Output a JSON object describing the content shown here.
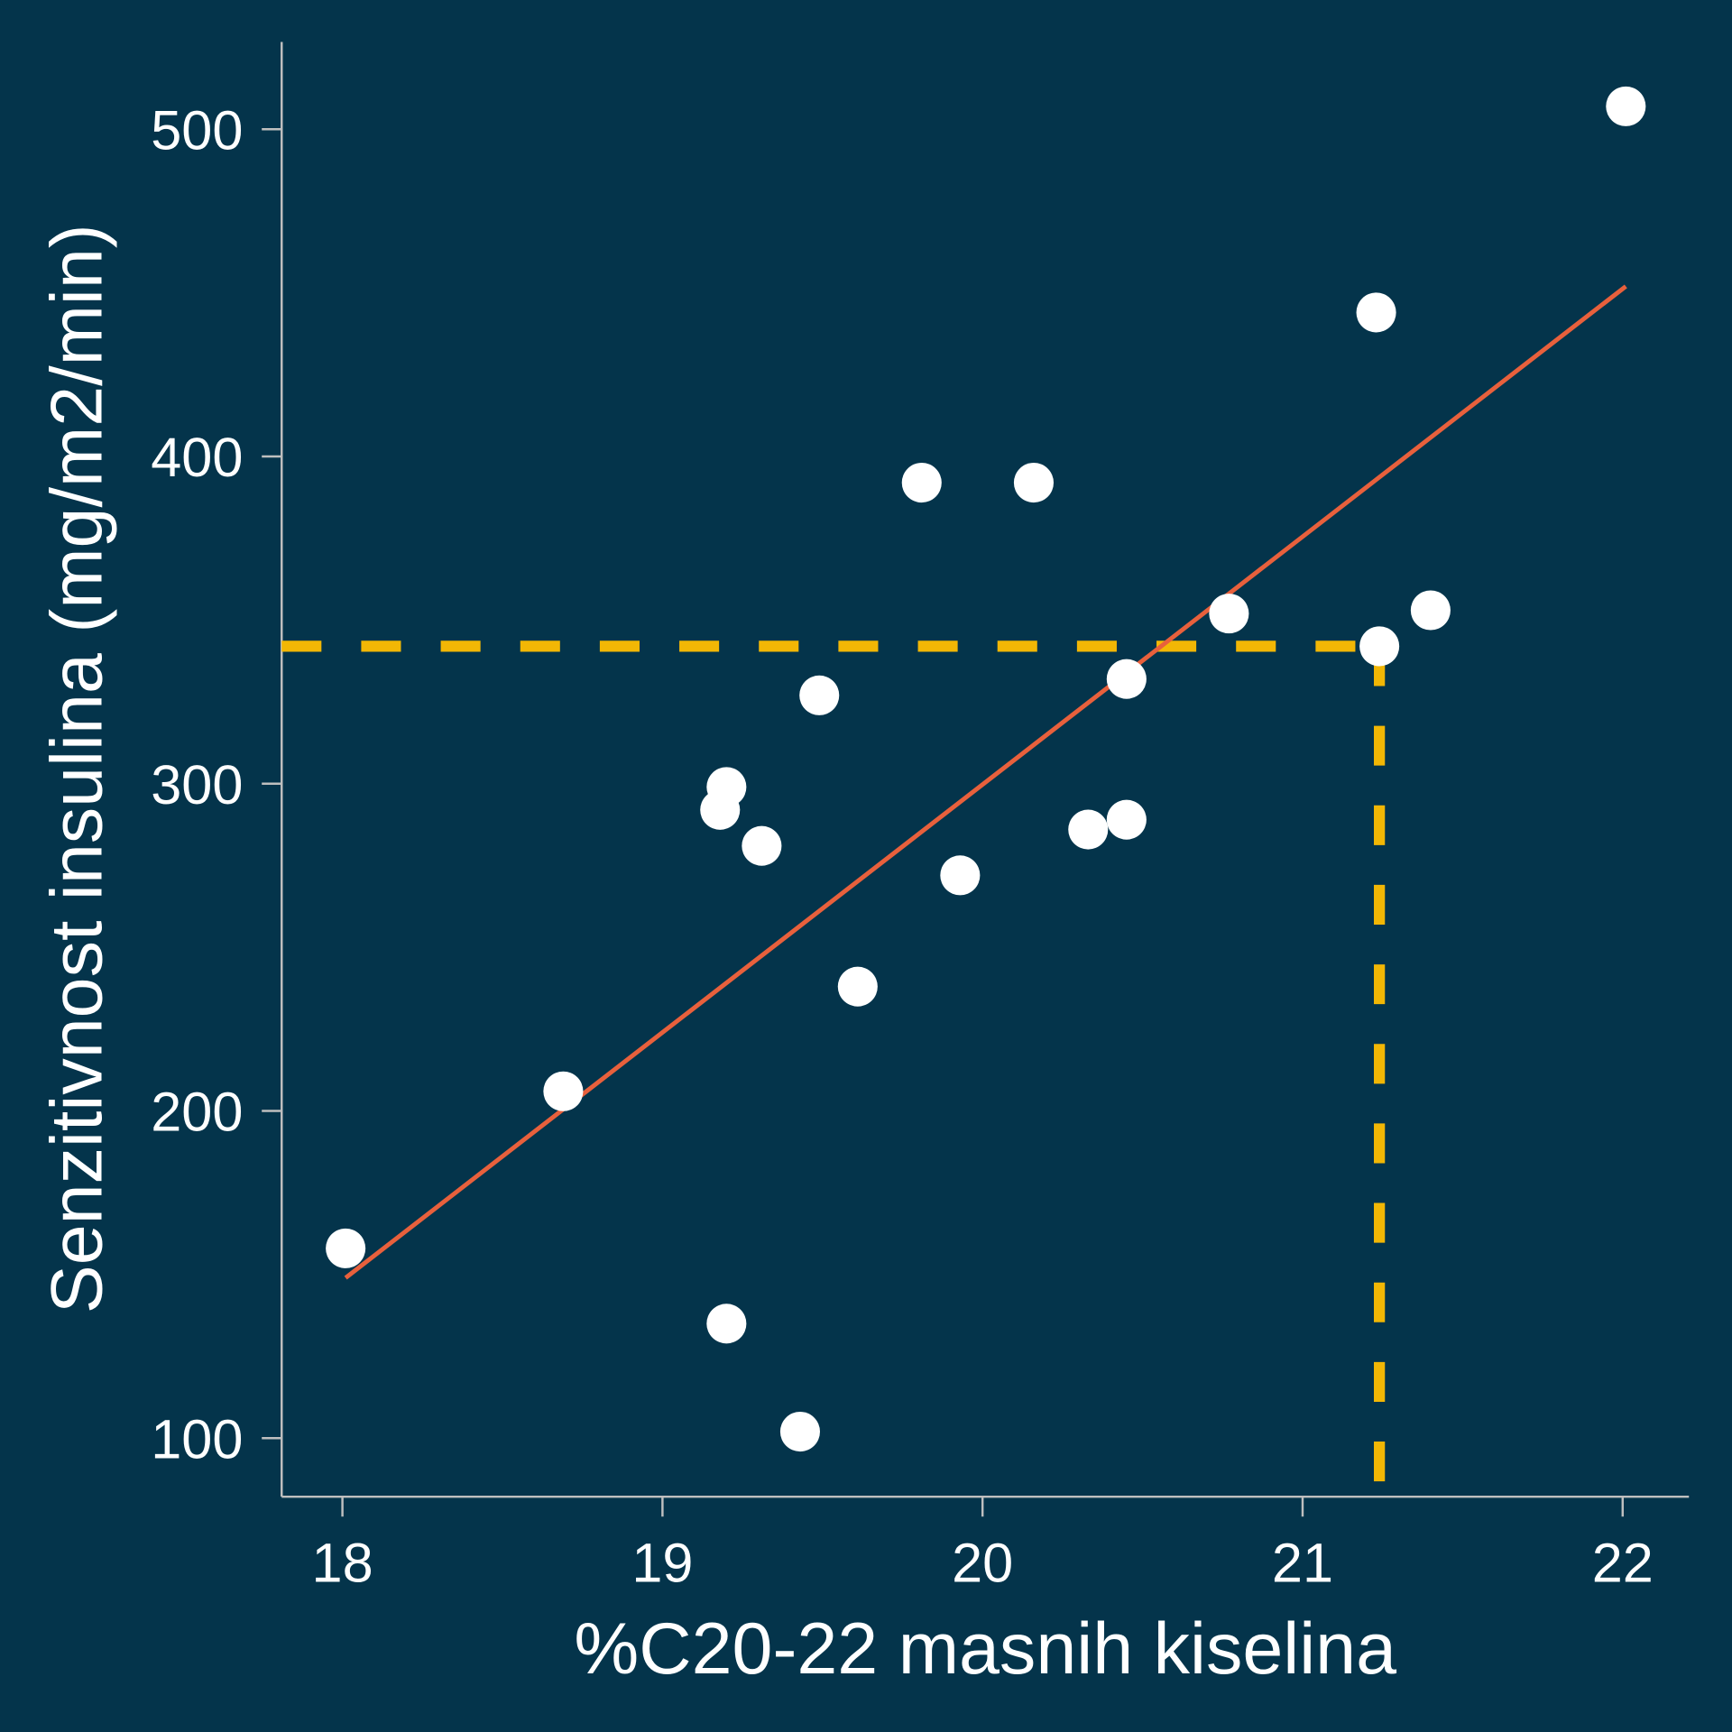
{
  "chart_data": {
    "type": "scatter",
    "title": "",
    "xlabel": "%C20-22 masnih kiselina",
    "ylabel": "Senzitivnost insulina (mg/m2/min)",
    "xlim": [
      17.81,
      22.21
    ],
    "ylim": [
      82,
      527
    ],
    "xticks": [
      18,
      19,
      20,
      21,
      22
    ],
    "yticks": [
      100,
      200,
      300,
      400,
      500
    ],
    "grid": false,
    "colors": {
      "background": "#04344b",
      "points": "#ffffff",
      "fit_line": "#e8603c",
      "reference": "#f2b705",
      "axis": "#bfbfbf"
    },
    "points": [
      {
        "x": 18.01,
        "y": 158
      },
      {
        "x": 18.69,
        "y": 206
      },
      {
        "x": 19.18,
        "y": 292
      },
      {
        "x": 19.2,
        "y": 299
      },
      {
        "x": 19.2,
        "y": 135
      },
      {
        "x": 19.31,
        "y": 281
      },
      {
        "x": 19.43,
        "y": 102
      },
      {
        "x": 19.49,
        "y": 327
      },
      {
        "x": 19.61,
        "y": 238
      },
      {
        "x": 19.81,
        "y": 392
      },
      {
        "x": 19.93,
        "y": 272
      },
      {
        "x": 20.16,
        "y": 392
      },
      {
        "x": 20.33,
        "y": 286
      },
      {
        "x": 20.45,
        "y": 289
      },
      {
        "x": 20.45,
        "y": 332
      },
      {
        "x": 20.77,
        "y": 352
      },
      {
        "x": 21.23,
        "y": 444
      },
      {
        "x": 21.24,
        "y": 342
      },
      {
        "x": 21.4,
        "y": 353
      },
      {
        "x": 22.01,
        "y": 507
      }
    ],
    "fit_line": {
      "x": [
        18.01,
        22.01
      ],
      "y": [
        149,
        452
      ]
    },
    "reference_lines": {
      "x": 21.24,
      "y": 342
    }
  }
}
